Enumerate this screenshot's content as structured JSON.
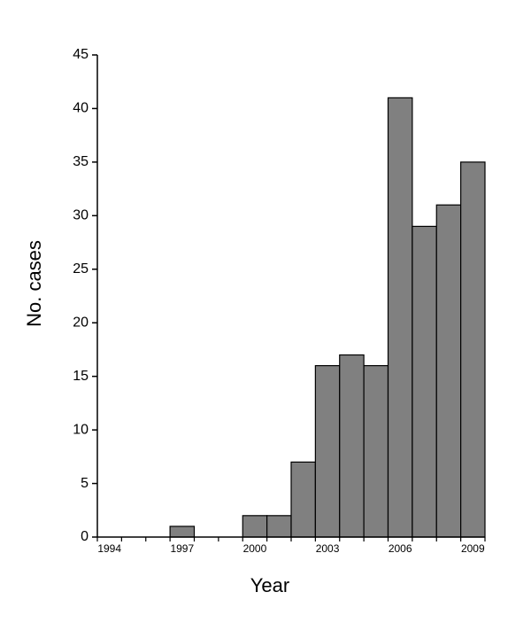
{
  "chart_data": {
    "type": "bar",
    "x_label": "Year",
    "y_label": "No. cases",
    "categories": [
      "1994",
      null,
      null,
      "1997",
      null,
      null,
      "2000",
      null,
      null,
      "2003",
      null,
      null,
      "2006",
      null,
      null,
      "2009"
    ],
    "values": [
      0,
      0,
      0,
      1,
      0,
      0,
      2,
      2,
      7,
      16,
      17,
      16,
      41,
      29,
      31,
      35
    ],
    "color": "#808080",
    "ylim": [
      0,
      45
    ],
    "yticks": [
      0,
      5,
      10,
      15,
      20,
      25,
      30,
      35,
      40,
      45
    ],
    "grid": false
  }
}
